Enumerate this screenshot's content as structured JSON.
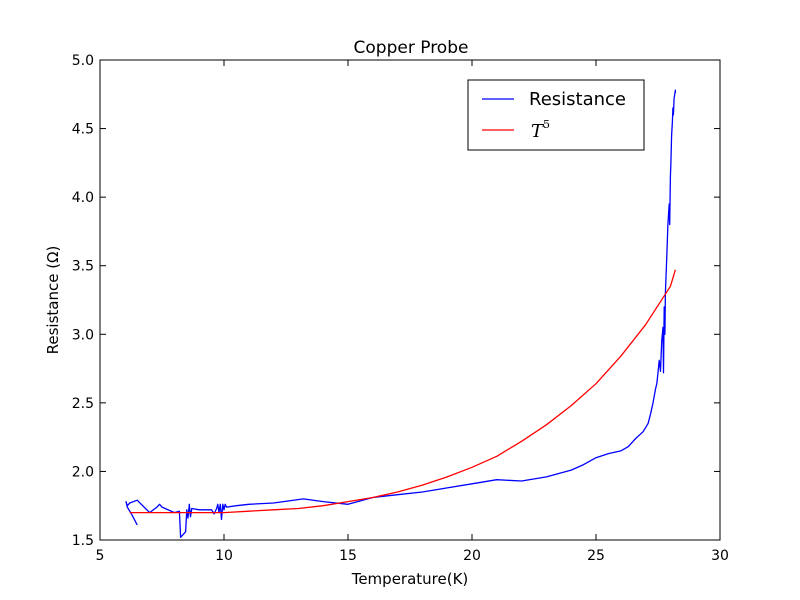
{
  "chart_data": {
    "type": "line",
    "title": "Copper Probe",
    "xlabel": "Temperature(K)",
    "ylabel": "Resistance (Ω)",
    "xlim": [
      5,
      30
    ],
    "ylim": [
      1.5,
      5.0
    ],
    "x_ticks": [
      5,
      10,
      15,
      20,
      25,
      30
    ],
    "x_tick_labels": [
      "5",
      "10",
      "15",
      "20",
      "25",
      "30"
    ],
    "y_ticks": [
      1.5,
      2.0,
      2.5,
      3.0,
      3.5,
      4.0,
      4.5,
      5.0
    ],
    "y_tick_labels": [
      "1.5",
      "2.0",
      "2.5",
      "3.0",
      "3.5",
      "4.0",
      "4.5",
      "5.0"
    ],
    "grid": false,
    "legend_position": "top-right",
    "series": [
      {
        "name": "Resistance",
        "color": "#0000ff",
        "points": [
          [
            6.5,
            1.61
          ],
          [
            6.3,
            1.68
          ],
          [
            6.1,
            1.74
          ],
          [
            6.05,
            1.78
          ],
          [
            6.1,
            1.75
          ],
          [
            6.2,
            1.77
          ],
          [
            6.5,
            1.79
          ],
          [
            7.0,
            1.7
          ],
          [
            7.3,
            1.74
          ],
          [
            7.4,
            1.76
          ],
          [
            7.5,
            1.74
          ],
          [
            8.0,
            1.7
          ],
          [
            8.2,
            1.71
          ],
          [
            8.25,
            1.52
          ],
          [
            8.45,
            1.56
          ],
          [
            8.5,
            1.72
          ],
          [
            8.55,
            1.66
          ],
          [
            8.6,
            1.76
          ],
          [
            8.65,
            1.67
          ],
          [
            8.7,
            1.73
          ],
          [
            9.0,
            1.72
          ],
          [
            9.5,
            1.72
          ],
          [
            9.6,
            1.69
          ],
          [
            9.7,
            1.73
          ],
          [
            9.75,
            1.76
          ],
          [
            9.8,
            1.7
          ],
          [
            9.85,
            1.76
          ],
          [
            9.9,
            1.65
          ],
          [
            9.95,
            1.76
          ],
          [
            10.0,
            1.72
          ],
          [
            10.05,
            1.76
          ],
          [
            10.1,
            1.74
          ],
          [
            10.5,
            1.75
          ],
          [
            11.0,
            1.76
          ],
          [
            12.0,
            1.77
          ],
          [
            13.2,
            1.8
          ],
          [
            14.0,
            1.78
          ],
          [
            15.0,
            1.76
          ],
          [
            16.0,
            1.81
          ],
          [
            17.0,
            1.83
          ],
          [
            18.0,
            1.85
          ],
          [
            19.0,
            1.88
          ],
          [
            20.0,
            1.91
          ],
          [
            21.0,
            1.94
          ],
          [
            22.0,
            1.93
          ],
          [
            23.0,
            1.96
          ],
          [
            24.0,
            2.01
          ],
          [
            24.5,
            2.05
          ],
          [
            25.0,
            2.1
          ],
          [
            25.5,
            2.13
          ],
          [
            26.0,
            2.15
          ],
          [
            26.3,
            2.18
          ],
          [
            26.6,
            2.24
          ],
          [
            26.9,
            2.29
          ],
          [
            27.1,
            2.35
          ],
          [
            27.2,
            2.42
          ],
          [
            27.3,
            2.5
          ],
          [
            27.4,
            2.6
          ],
          [
            27.45,
            2.64
          ],
          [
            27.5,
            2.72
          ],
          [
            27.55,
            2.81
          ],
          [
            27.6,
            2.73
          ],
          [
            27.65,
            2.95
          ],
          [
            27.7,
            3.05
          ],
          [
            27.72,
            2.72
          ],
          [
            27.75,
            3.2
          ],
          [
            27.78,
            3.0
          ],
          [
            27.8,
            3.3
          ],
          [
            27.85,
            3.55
          ],
          [
            27.9,
            3.8
          ],
          [
            27.95,
            3.95
          ],
          [
            27.97,
            3.8
          ],
          [
            28.0,
            4.15
          ],
          [
            28.02,
            4.25
          ],
          [
            28.05,
            4.45
          ],
          [
            28.08,
            4.55
          ],
          [
            28.1,
            4.65
          ],
          [
            28.12,
            4.6
          ],
          [
            28.15,
            4.72
          ],
          [
            28.2,
            4.78
          ],
          [
            28.2,
            4.76
          ]
        ]
      },
      {
        "name": "T^5",
        "color": "#ff0000",
        "points": [
          [
            6.2,
            1.7
          ],
          [
            7.0,
            1.7
          ],
          [
            8.0,
            1.7
          ],
          [
            9.0,
            1.7
          ],
          [
            10.0,
            1.7
          ],
          [
            11.0,
            1.71
          ],
          [
            12.0,
            1.72
          ],
          [
            13.0,
            1.73
          ],
          [
            14.0,
            1.75
          ],
          [
            15.0,
            1.78
          ],
          [
            16.0,
            1.81
          ],
          [
            17.0,
            1.85
          ],
          [
            18.0,
            1.9
          ],
          [
            19.0,
            1.96
          ],
          [
            20.0,
            2.03
          ],
          [
            21.0,
            2.11
          ],
          [
            22.0,
            2.22
          ],
          [
            23.0,
            2.34
          ],
          [
            24.0,
            2.48
          ],
          [
            25.0,
            2.64
          ],
          [
            26.0,
            2.84
          ],
          [
            27.0,
            3.07
          ],
          [
            28.0,
            3.35
          ],
          [
            28.2,
            3.47
          ]
        ]
      }
    ]
  }
}
